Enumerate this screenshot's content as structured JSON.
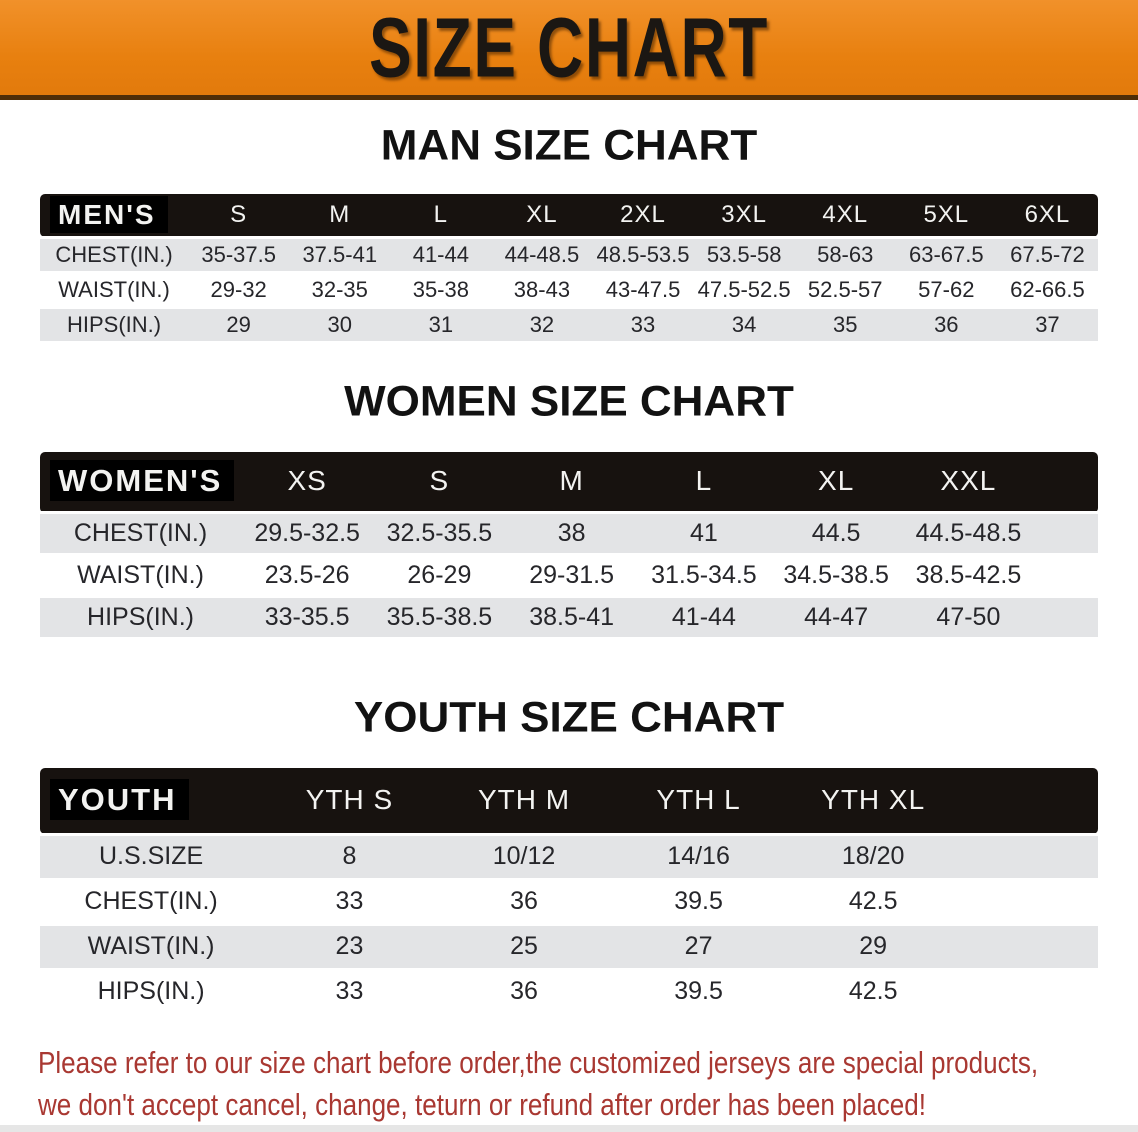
{
  "banner": {
    "title": "SIZE CHART",
    "bg_color": "#E8800F",
    "text_color": "#1B1713"
  },
  "men": {
    "title": "MAN SIZE CHART",
    "header_label": "MEN'S",
    "sizes": [
      "S",
      "M",
      "L",
      "XL",
      "2XL",
      "3XL",
      "4XL",
      "5XL",
      "6XL"
    ],
    "rows": [
      {
        "label": "CHEST(IN.)",
        "values": [
          "35-37.5",
          "37.5-41",
          "41-44",
          "44-48.5",
          "48.5-53.5",
          "53.5-58",
          "58-63",
          "63-67.5",
          "67.5-72"
        ]
      },
      {
        "label": "WAIST(IN.)",
        "values": [
          "29-32",
          "32-35",
          "35-38",
          "38-43",
          "43-47.5",
          "47.5-52.5",
          "52.5-57",
          "57-62",
          "62-66.5"
        ]
      },
      {
        "label": "HIPS(IN.)",
        "values": [
          "29",
          "30",
          "31",
          "32",
          "33",
          "34",
          "35",
          "36",
          "37"
        ]
      }
    ]
  },
  "women": {
    "title": "WOMEN SIZE CHART",
    "header_label": "WOMEN'S",
    "sizes": [
      "XS",
      "S",
      "M",
      "L",
      "XL",
      "XXL"
    ],
    "rows": [
      {
        "label": "CHEST(IN.)",
        "values": [
          "29.5-32.5",
          "32.5-35.5",
          "38",
          "41",
          "44.5",
          "44.5-48.5"
        ]
      },
      {
        "label": "WAIST(IN.)",
        "values": [
          "23.5-26",
          "26-29",
          "29-31.5",
          "31.5-34.5",
          "34.5-38.5",
          "38.5-42.5"
        ]
      },
      {
        "label": "HIPS(IN.)",
        "values": [
          "33-35.5",
          "35.5-38.5",
          "38.5-41",
          "41-44",
          "44-47",
          "47-50"
        ]
      }
    ]
  },
  "youth": {
    "title": "YOUTH SIZE CHART",
    "header_label": "YOUTH",
    "sizes": [
      "YTH S",
      "YTH M",
      "YTH L",
      "YTH XL"
    ],
    "rows": [
      {
        "label": "U.S.SIZE",
        "values": [
          "8",
          "10/12",
          "14/16",
          "18/20"
        ]
      },
      {
        "label": "CHEST(IN.)",
        "values": [
          "33",
          "36",
          "39.5",
          "42.5"
        ]
      },
      {
        "label": "WAIST(IN.)",
        "values": [
          "23",
          "25",
          "27",
          "29"
        ]
      },
      {
        "label": "HIPS(IN.)",
        "values": [
          "33",
          "36",
          "39.5",
          "42.5"
        ]
      }
    ]
  },
  "disclaimer": {
    "line1": "Please refer to our size chart before order,the customized jerseys are special products,",
    "line2": "we don't accept cancel, change, teturn or refund after order has been placed!",
    "color": "#A93832"
  },
  "colors": {
    "table_header_bg": "#17120F",
    "row_stripe": "#E3E4E6"
  }
}
